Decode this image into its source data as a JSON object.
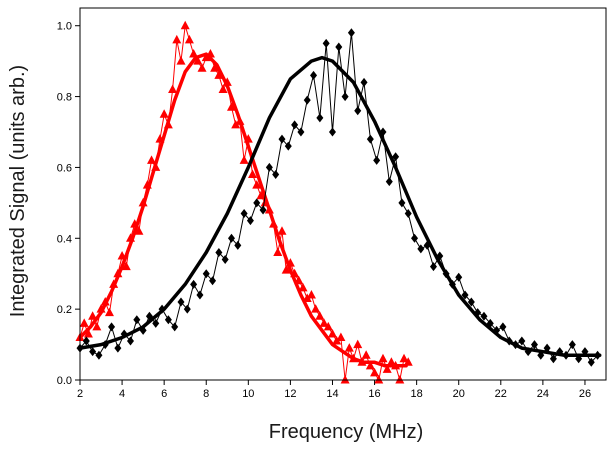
{
  "chart_data": {
    "type": "scatter",
    "title": "",
    "xlabel": "Frequency (MHz)",
    "ylabel": "Integrated Signal (units arb.)",
    "xlim": [
      2,
      27
    ],
    "ylim": [
      0.0,
      1.05
    ],
    "grid": false,
    "legend": "none",
    "x_ticks": [
      2,
      4,
      6,
      8,
      10,
      12,
      14,
      16,
      18,
      20,
      22,
      24,
      26
    ],
    "x_tick_labels": [
      "2",
      "4",
      "6",
      "8",
      "10",
      "12",
      "14",
      "16",
      "18",
      "20",
      "22",
      "24",
      "26"
    ],
    "y_ticks": [
      0.0,
      0.2,
      0.4,
      0.6,
      0.8,
      1.0
    ],
    "y_tick_labels": [
      "0.0",
      "0.2",
      "0.4",
      "0.6",
      "0.8",
      "1.0"
    ],
    "series": [
      {
        "kind": "points",
        "marker": "triangle",
        "color": "#ff0000",
        "x": [
          2.0,
          2.2,
          2.4,
          2.6,
          2.8,
          3.0,
          3.2,
          3.4,
          3.6,
          3.8,
          4.0,
          4.2,
          4.4,
          4.6,
          4.8,
          5.0,
          5.2,
          5.4,
          5.6,
          5.8,
          6.0,
          6.2,
          6.4,
          6.6,
          6.8,
          7.0,
          7.2,
          7.4,
          7.6,
          7.8,
          8.0,
          8.2,
          8.4,
          8.6,
          8.8,
          9.0,
          9.2,
          9.4,
          9.6,
          9.8,
          10.0,
          10.2,
          10.4,
          10.6,
          10.8,
          11.0,
          11.2,
          11.4,
          11.6,
          11.8,
          12.0,
          12.2,
          12.4,
          12.6,
          12.8,
          13.0,
          13.2,
          13.4,
          13.6,
          13.8,
          14.0,
          14.2,
          14.4,
          14.6,
          14.8,
          15.0,
          15.2,
          15.4,
          15.6,
          15.8,
          16.0,
          16.2,
          16.4,
          16.6,
          16.8,
          17.0,
          17.2,
          17.4,
          17.6
        ],
        "y": [
          0.12,
          0.16,
          0.13,
          0.18,
          0.15,
          0.2,
          0.22,
          0.19,
          0.27,
          0.3,
          0.35,
          0.32,
          0.4,
          0.44,
          0.42,
          0.5,
          0.55,
          0.62,
          0.6,
          0.68,
          0.75,
          0.72,
          0.82,
          0.96,
          0.9,
          1.0,
          0.96,
          0.92,
          0.9,
          0.88,
          0.91,
          0.92,
          0.88,
          0.86,
          0.82,
          0.84,
          0.77,
          0.72,
          0.73,
          0.62,
          0.68,
          0.58,
          0.55,
          0.52,
          0.5,
          0.48,
          0.44,
          0.36,
          0.42,
          0.31,
          0.33,
          0.3,
          0.28,
          0.26,
          0.23,
          0.24,
          0.2,
          0.18,
          0.16,
          0.15,
          0.13,
          0.11,
          0.12,
          0.0,
          0.09,
          0.06,
          0.1,
          0.05,
          0.07,
          0.04,
          0.02,
          0.0,
          0.06,
          0.03,
          0.05,
          0.04,
          0.0,
          0.06,
          0.05
        ]
      },
      {
        "kind": "fit",
        "color": "#ff0000",
        "x": [
          2.0,
          2.5,
          3.0,
          3.5,
          4.0,
          4.5,
          5.0,
          5.5,
          6.0,
          6.5,
          7.0,
          7.5,
          8.0,
          8.5,
          9.0,
          9.5,
          10.0,
          10.5,
          11.0,
          11.5,
          12.0,
          12.5,
          13.0,
          13.5,
          14.0,
          14.5,
          15.0,
          15.5,
          16.0,
          16.5,
          17.0,
          17.5
        ],
        "y": [
          0.12,
          0.15,
          0.19,
          0.25,
          0.32,
          0.4,
          0.49,
          0.59,
          0.69,
          0.79,
          0.87,
          0.91,
          0.92,
          0.89,
          0.83,
          0.75,
          0.66,
          0.57,
          0.48,
          0.39,
          0.31,
          0.24,
          0.18,
          0.14,
          0.1,
          0.08,
          0.06,
          0.05,
          0.05,
          0.04,
          0.04,
          0.04
        ]
      },
      {
        "kind": "points",
        "marker": "diamond",
        "color": "#000000",
        "x": [
          2.0,
          2.3,
          2.6,
          2.9,
          3.2,
          3.5,
          3.8,
          4.1,
          4.4,
          4.7,
          5.0,
          5.3,
          5.6,
          5.9,
          6.2,
          6.5,
          6.8,
          7.1,
          7.4,
          7.7,
          8.0,
          8.3,
          8.6,
          8.9,
          9.2,
          9.5,
          9.8,
          10.1,
          10.4,
          10.7,
          11.0,
          11.3,
          11.6,
          11.9,
          12.2,
          12.5,
          12.8,
          13.1,
          13.4,
          13.7,
          14.0,
          14.3,
          14.6,
          14.9,
          15.2,
          15.5,
          15.8,
          16.1,
          16.4,
          16.7,
          17.0,
          17.3,
          17.6,
          17.9,
          18.2,
          18.5,
          18.8,
          19.1,
          19.4,
          19.7,
          20.0,
          20.3,
          20.6,
          20.9,
          21.2,
          21.5,
          21.8,
          22.1,
          22.4,
          22.7,
          23.0,
          23.3,
          23.6,
          23.9,
          24.2,
          24.5,
          24.8,
          25.1,
          25.4,
          25.7,
          26.0,
          26.3,
          26.6
        ],
        "y": [
          0.09,
          0.11,
          0.08,
          0.07,
          0.1,
          0.15,
          0.09,
          0.13,
          0.11,
          0.17,
          0.14,
          0.18,
          0.16,
          0.2,
          0.17,
          0.15,
          0.22,
          0.2,
          0.27,
          0.24,
          0.3,
          0.28,
          0.36,
          0.34,
          0.4,
          0.38,
          0.47,
          0.45,
          0.5,
          0.48,
          0.6,
          0.58,
          0.68,
          0.66,
          0.72,
          0.7,
          0.79,
          0.86,
          0.74,
          0.95,
          0.7,
          0.94,
          0.8,
          0.98,
          0.76,
          0.84,
          0.68,
          0.62,
          0.7,
          0.56,
          0.63,
          0.5,
          0.47,
          0.4,
          0.37,
          0.38,
          0.32,
          0.35,
          0.3,
          0.27,
          0.29,
          0.24,
          0.22,
          0.19,
          0.18,
          0.16,
          0.14,
          0.15,
          0.11,
          0.1,
          0.11,
          0.08,
          0.1,
          0.07,
          0.09,
          0.06,
          0.08,
          0.07,
          0.1,
          0.06,
          0.08,
          0.05,
          0.07
        ]
      },
      {
        "kind": "fit",
        "color": "#000000",
        "x": [
          2.0,
          3.0,
          4.0,
          5.0,
          6.0,
          7.0,
          8.0,
          9.0,
          10.0,
          11.0,
          12.0,
          13.0,
          13.5,
          14.0,
          15.0,
          16.0,
          17.0,
          18.0,
          19.0,
          20.0,
          21.0,
          22.0,
          23.0,
          24.0,
          25.0,
          26.0,
          26.7
        ],
        "y": [
          0.09,
          0.1,
          0.12,
          0.15,
          0.2,
          0.27,
          0.36,
          0.47,
          0.6,
          0.74,
          0.85,
          0.9,
          0.91,
          0.9,
          0.84,
          0.73,
          0.6,
          0.46,
          0.34,
          0.24,
          0.17,
          0.12,
          0.09,
          0.08,
          0.07,
          0.07,
          0.07
        ]
      }
    ]
  }
}
